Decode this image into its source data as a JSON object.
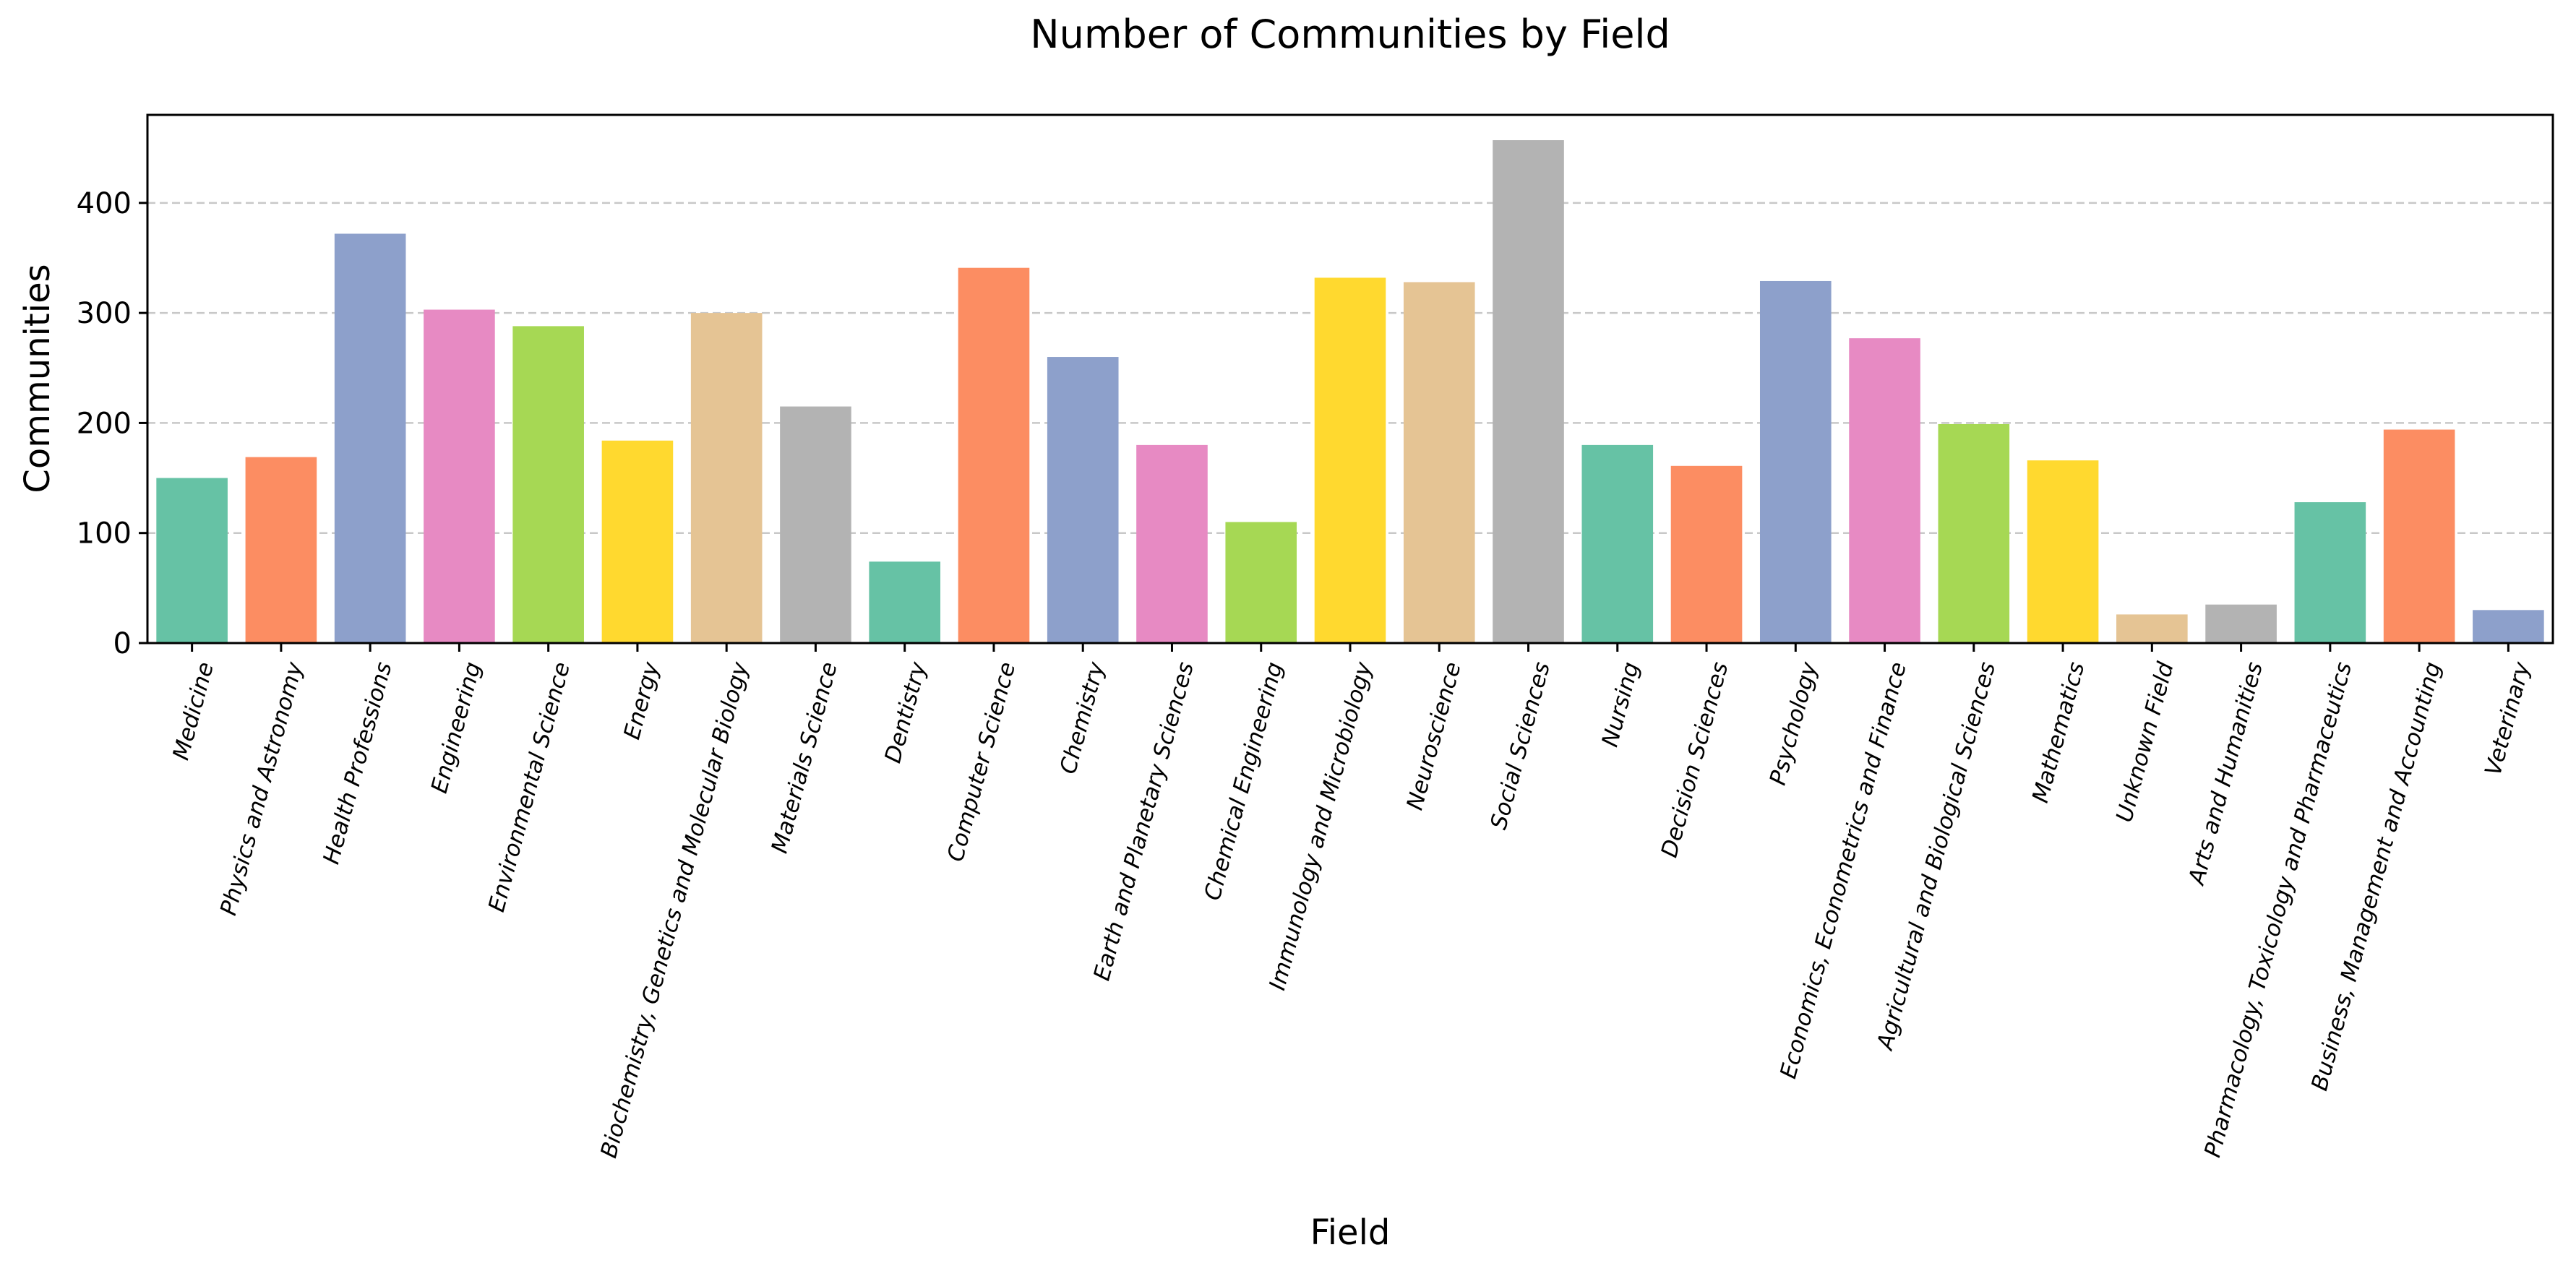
{
  "chart_data": {
    "type": "bar",
    "title": "Number of Communities by Field",
    "xlabel": "Field",
    "ylabel": "Communities",
    "ylim": [
      0,
      480
    ],
    "yticks": [
      0,
      100,
      200,
      300,
      400
    ],
    "grid": "horizontal dashed",
    "categories": [
      "Medicine",
      "Physics and Astronomy",
      "Health Professions",
      "Engineering",
      "Environmental Science",
      "Energy",
      "Biochemistry, Genetics and Molecular Biology",
      "Materials Science",
      "Dentistry",
      "Computer Science",
      "Chemistry",
      "Earth and Planetary Sciences",
      "Chemical Engineering",
      "Immunology and Microbiology",
      "Neuroscience",
      "Social Sciences",
      "Nursing",
      "Decision Sciences",
      "Psychology",
      "Economics, Econometrics and Finance",
      "Agricultural and Biological Sciences",
      "Mathematics",
      "Unknown Field",
      "Arts and Humanities",
      "Pharmacology, Toxicology and Pharmaceutics",
      "Business, Management and Accounting",
      "Veterinary"
    ],
    "values": [
      150,
      169,
      372,
      303,
      288,
      184,
      300,
      215,
      74,
      341,
      260,
      180,
      110,
      332,
      328,
      457,
      180,
      161,
      329,
      277,
      199,
      166,
      26,
      35,
      128,
      194,
      30
    ],
    "colors": [
      "#66c2a5",
      "#fc8d62",
      "#8da0cb",
      "#e78ac3",
      "#a6d854",
      "#ffd92f",
      "#e5c494",
      "#b3b3b3"
    ]
  }
}
